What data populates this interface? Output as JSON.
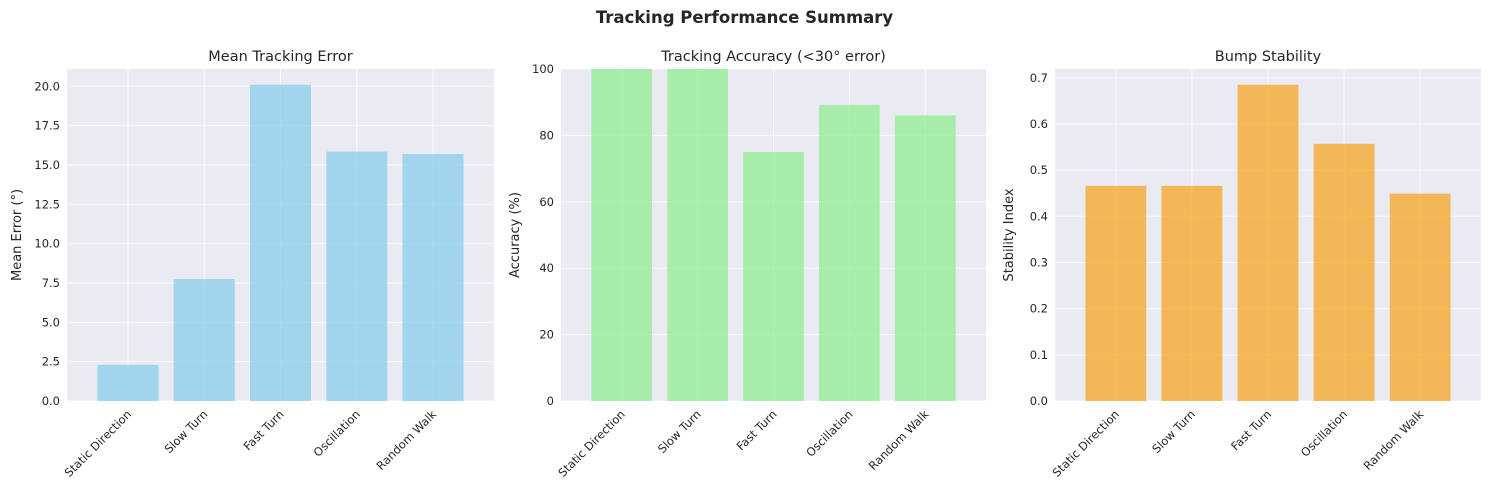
{
  "figure": {
    "title": "Tracking Performance Summary"
  },
  "chart_data": [
    {
      "type": "bar",
      "title": "Mean Tracking Error",
      "xlabel": "",
      "ylabel": "Mean Error (°)",
      "categories": [
        "Static Direction",
        "Slow Turn",
        "Fast Turn",
        "Oscillation",
        "Random Walk"
      ],
      "values": [
        2.3,
        7.75,
        20.1,
        15.85,
        15.7
      ],
      "ylim": [
        0,
        21.1
      ],
      "yticks": [
        0,
        2.5,
        5,
        7.5,
        10,
        12.5,
        15,
        17.5,
        20
      ],
      "ytick_labels": [
        "0.0",
        "2.5",
        "5.0",
        "7.5",
        "10.0",
        "12.5",
        "15.0",
        "17.5",
        "20.0"
      ],
      "color": "#87ceeb",
      "grid": true
    },
    {
      "type": "bar",
      "title": "Tracking Accuracy (<30° error)",
      "xlabel": "",
      "ylabel": "Accuracy (%)",
      "categories": [
        "Static Direction",
        "Slow Turn",
        "Fast Turn",
        "Oscillation",
        "Random Walk"
      ],
      "values": [
        100,
        100,
        75,
        89.2,
        86
      ],
      "ylim": [
        0,
        100
      ],
      "yticks": [
        0,
        20,
        40,
        60,
        80,
        100
      ],
      "ytick_labels": [
        "0",
        "20",
        "40",
        "60",
        "80",
        "100"
      ],
      "color": "#90ee90",
      "grid": true
    },
    {
      "type": "bar",
      "title": "Bump Stability",
      "xlabel": "",
      "ylabel": "Stability Index",
      "categories": [
        "Static Direction",
        "Slow Turn",
        "Fast Turn",
        "Oscillation",
        "Random Walk"
      ],
      "values": [
        0.466,
        0.466,
        0.685,
        0.557,
        0.449
      ],
      "ylim": [
        0,
        0.719
      ],
      "yticks": [
        0,
        0.1,
        0.2,
        0.3,
        0.4,
        0.5,
        0.6,
        0.7
      ],
      "ytick_labels": [
        "0.0",
        "0.1",
        "0.2",
        "0.3",
        "0.4",
        "0.5",
        "0.6",
        "0.7"
      ],
      "color": "#f5a623",
      "grid": true
    }
  ]
}
